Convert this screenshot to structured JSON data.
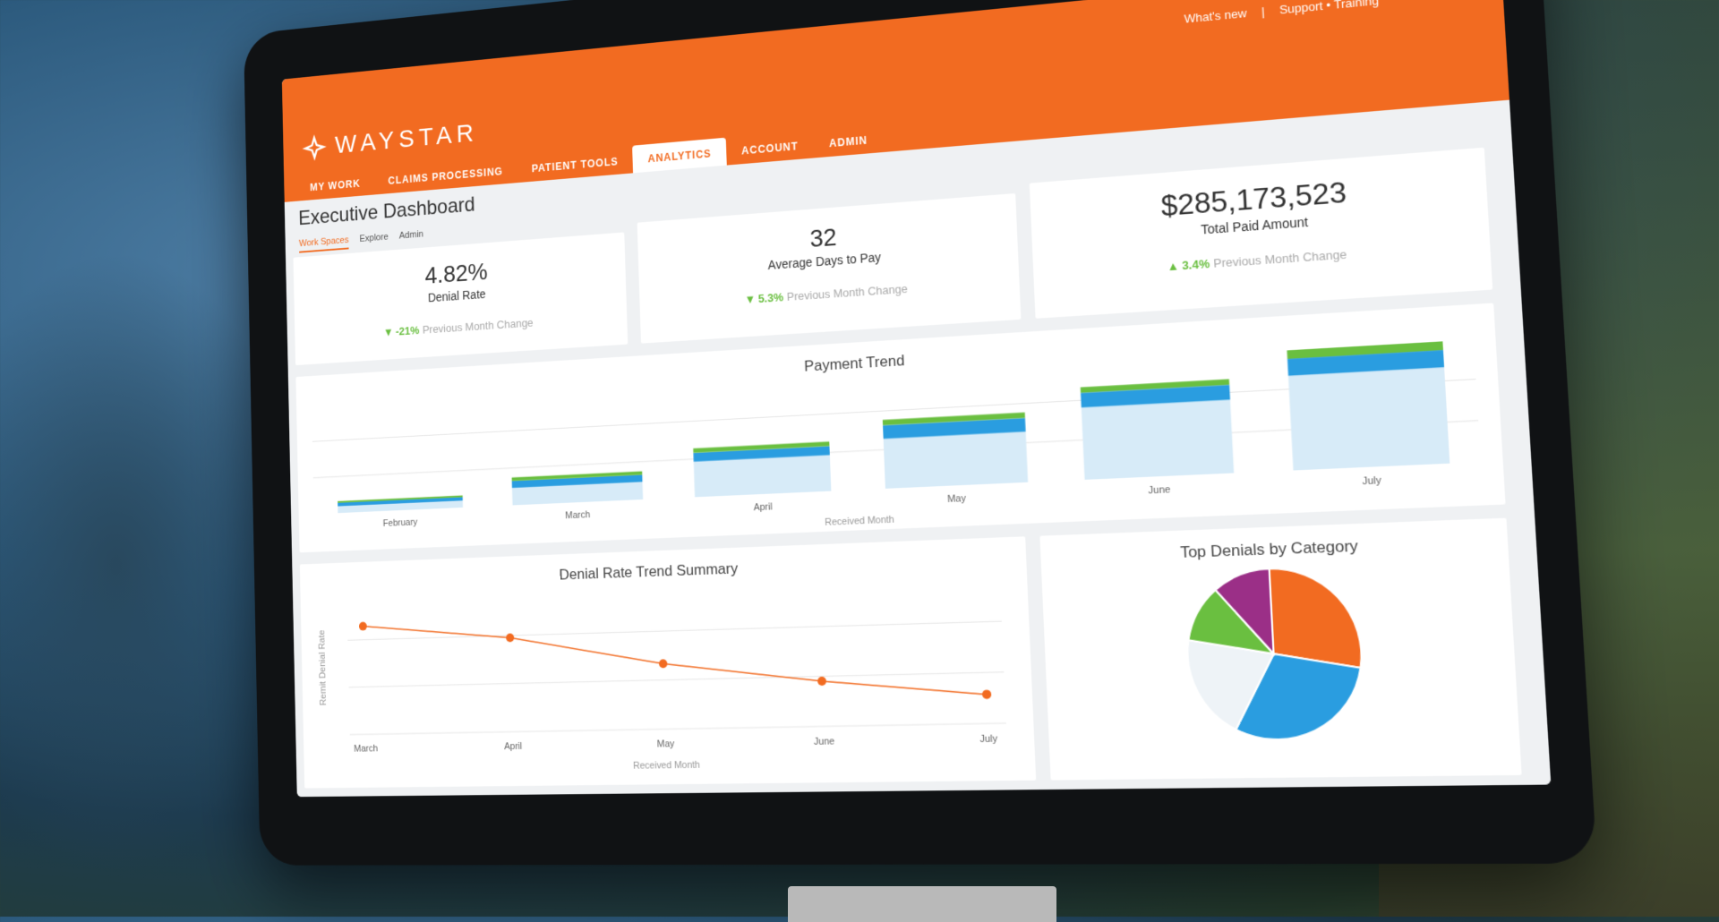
{
  "toplinks": {
    "whats_new": "What's new",
    "separator": "|",
    "support": "Support • Training"
  },
  "brand": {
    "name": "WAYSTAR"
  },
  "nav": [
    {
      "label": "MY WORK"
    },
    {
      "label": "CLAIMS PROCESSING"
    },
    {
      "label": "PATIENT TOOLS"
    },
    {
      "label": "ANALYTICS",
      "active": true
    },
    {
      "label": "ACCOUNT"
    },
    {
      "label": "ADMIN"
    }
  ],
  "page": {
    "title": "Executive Dashboard",
    "subtabs": [
      {
        "label": "Work Spaces",
        "active": true
      },
      {
        "label": "Explore"
      },
      {
        "label": "Admin"
      }
    ]
  },
  "kpis": [
    {
      "value": "4.82%",
      "label": "Denial Rate",
      "arrow": "down",
      "pct": "-21%",
      "change_label": "Previous Month Change"
    },
    {
      "value": "32",
      "label": "Average Days to Pay",
      "arrow": "down",
      "pct": "5.3%",
      "change_label": "Previous Month Change"
    },
    {
      "value": "$285,173,523",
      "label": "Total Paid Amount",
      "arrow": "up",
      "pct": "3.4%",
      "change_label": "Previous Month Change"
    }
  ],
  "colors": {
    "orange": "#f26b21",
    "green": "#6abf40",
    "blue": "#2a9de0",
    "lightblue": "#d7ebf8",
    "purple": "#9b2f87",
    "offwhite": "#eef3f7"
  },
  "chart_data": [
    {
      "type": "bar",
      "stacked": true,
      "title": "Payment Trend",
      "xlabel": "Received Month",
      "ylabel": "",
      "categories": [
        "February",
        "March",
        "April",
        "May",
        "June",
        "July"
      ],
      "series": [
        {
          "values": [
            8,
            20,
            40,
            55,
            78,
            100
          ]
        },
        {
          "values": [
            4,
            8,
            10,
            15,
            16,
            18
          ]
        },
        {
          "values": [
            2,
            4,
            5,
            6,
            6,
            9
          ]
        }
      ],
      "ylim": [
        0,
        130
      ],
      "grid": true
    },
    {
      "type": "line",
      "title": "Denial Rate Trend Summary",
      "xlabel": "Received Month",
      "ylabel": "Remit Denial Rate",
      "categories": [
        "March",
        "April",
        "May",
        "June",
        "July"
      ],
      "values": [
        7.8,
        7.1,
        5.8,
        4.9,
        4.2
      ],
      "ylim": [
        3,
        9
      ],
      "grid": true
    },
    {
      "type": "pie",
      "title": "Top Denials by Category",
      "values": [
        28,
        30,
        20,
        11,
        11
      ],
      "colors": [
        "#f26b21",
        "#2a9de0",
        "#eef3f7",
        "#6abf40",
        "#9b2f87"
      ]
    }
  ]
}
